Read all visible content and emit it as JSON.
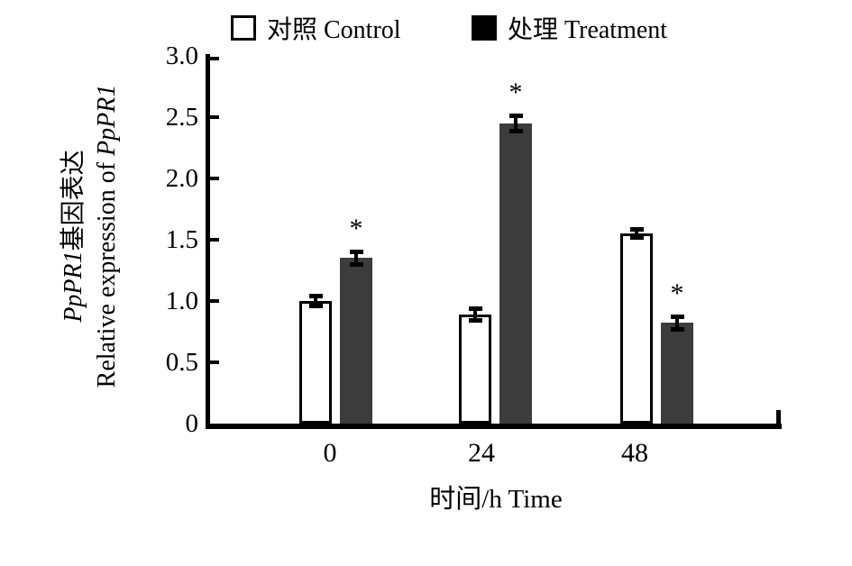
{
  "legend": {
    "control_label": "对照 Control",
    "treatment_label": "处理 Treatment"
  },
  "y_axis": {
    "title_line1_italic": "PpPR1",
    "title_line1_rest": "基因表达",
    "title_line2_rest": "Relative expression of ",
    "title_line2_italic": "PpPR1",
    "tick_labels": [
      "3.0",
      "2.5",
      "2.0",
      "1.5",
      "1.0",
      "0.5",
      "0"
    ]
  },
  "x_axis": {
    "title": "时间/h  Time",
    "categories": [
      "0",
      "24",
      "48"
    ]
  },
  "chart_data": {
    "type": "bar",
    "title": "",
    "categories": [
      "0",
      "24",
      "48"
    ],
    "xlabel": "时间/h Time",
    "ylabel": "PpPR1基因表达 Relative expression of PpPR1",
    "ylim": [
      0,
      3.0
    ],
    "ytick_step": 0.5,
    "grid": false,
    "legend_position": "top",
    "significance_marker": "*",
    "series": [
      {
        "name": "对照 Control",
        "values": [
          1.0,
          0.89,
          1.55
        ],
        "errors": [
          0.03,
          0.04,
          0.02
        ],
        "significant": [
          false,
          false,
          false
        ],
        "fill": "#ffffff",
        "border": "#000000"
      },
      {
        "name": "处理 Treatment",
        "values": [
          1.35,
          2.45,
          0.82
        ],
        "errors": [
          0.04,
          0.05,
          0.04
        ],
        "significant": [
          true,
          true,
          true
        ],
        "fill": "#3c3c3c",
        "border": "#3c3c3c"
      }
    ]
  },
  "colors": {
    "control_fill": "#ffffff",
    "treatment_fill": "#3c3c3c",
    "axis": "#000000",
    "text": "#000000",
    "background": "#ffffff"
  }
}
